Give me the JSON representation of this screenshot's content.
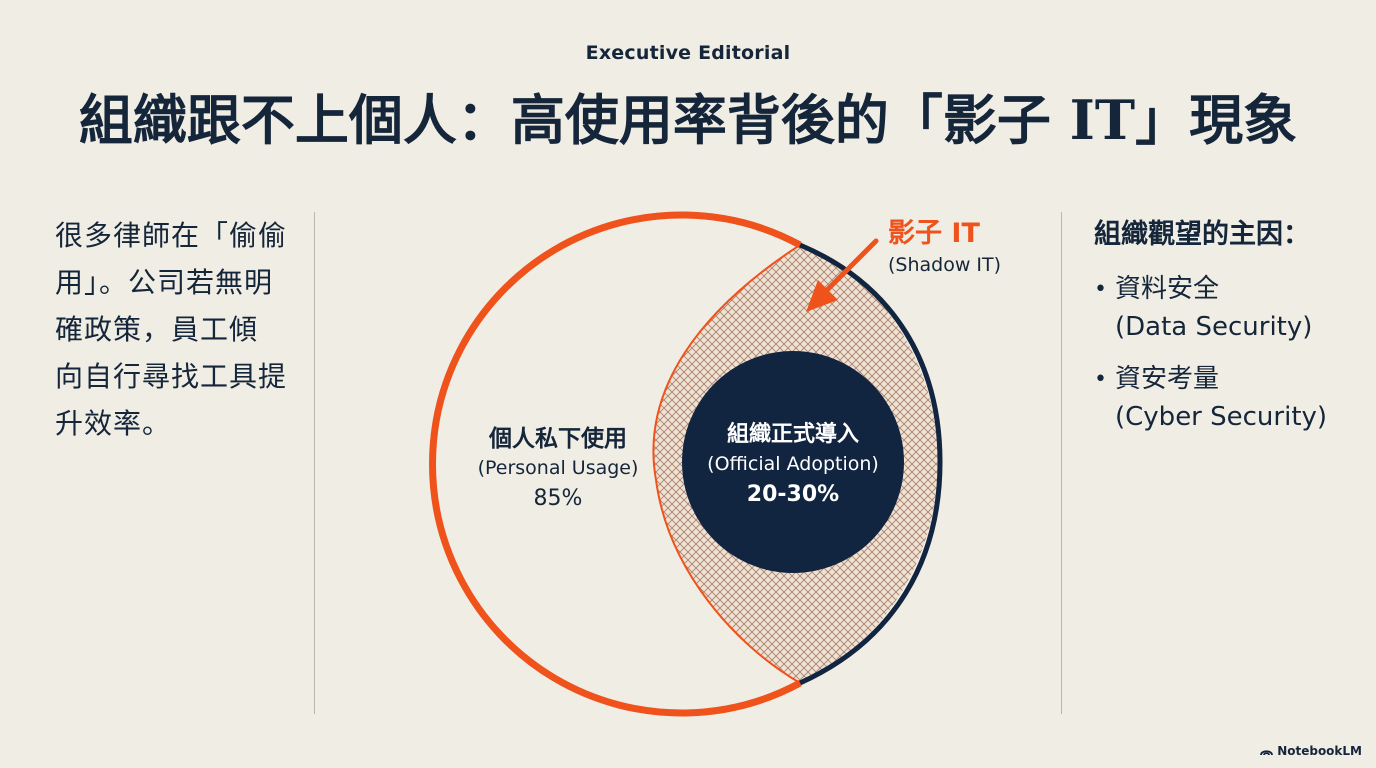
{
  "header": {
    "kicker": "Executive Editorial",
    "title": "組織跟不上個人：高使用率背後的「影子 IT」現象"
  },
  "left_panel": {
    "lines": [
      "很多律師在「偷偷",
      "用」。公司若無明",
      "確政策，員工傾",
      "向自行尋找工具提",
      "升效率。"
    ]
  },
  "diagram": {
    "personal": {
      "label_zh": "個人私下使用",
      "label_en": "(Personal Usage)",
      "value": "85%"
    },
    "official": {
      "label_zh": "組織正式導入",
      "label_en": "(Official Adoption)",
      "value": "20-30%"
    },
    "shadow": {
      "label_zh": "影子 IT",
      "label_en": "(Shadow IT)"
    },
    "colors": {
      "orange": "#f0521c",
      "navy": "#112440",
      "background": "#f0eee4"
    },
    "icons": [
      "arrow-icon"
    ]
  },
  "right_panel": {
    "heading": "組織觀望的主因：",
    "reasons": [
      {
        "zh": "資料安全",
        "en": "(Data Security)"
      },
      {
        "zh": "資安考量",
        "en": "(Cyber Security)"
      }
    ]
  },
  "branding": {
    "logo_text": "NotebookLM"
  }
}
